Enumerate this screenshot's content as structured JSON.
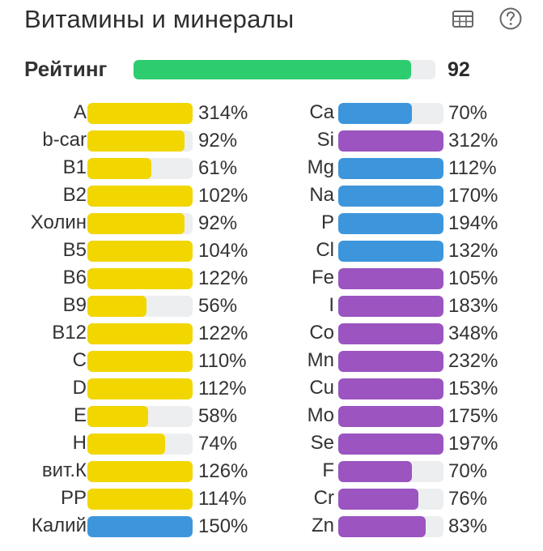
{
  "header": {
    "title": "Витамины и минералы",
    "table_icon": "table-icon",
    "help_icon": "help-icon"
  },
  "rating": {
    "label": "Рейтинг",
    "value": "92",
    "level_percent": 92,
    "color": "#2dcc6f"
  },
  "colors": {
    "vitamin": "#f2d600",
    "mineral_blue": "#3d96dc",
    "mineral_purple": "#9b54c0",
    "track": "#eceeef"
  },
  "vitamins": [
    {
      "label": "A",
      "percent": "314%",
      "fill_percent": 100,
      "color": "#f2d600"
    },
    {
      "label": "b-car",
      "percent": "92%",
      "fill_percent": 92,
      "color": "#f2d600"
    },
    {
      "label": "B1",
      "percent": "61%",
      "fill_percent": 61,
      "color": "#f2d600"
    },
    {
      "label": "B2",
      "percent": "102%",
      "fill_percent": 100,
      "color": "#f2d600"
    },
    {
      "label": "Холин",
      "percent": "92%",
      "fill_percent": 92,
      "color": "#f2d600"
    },
    {
      "label": "B5",
      "percent": "104%",
      "fill_percent": 100,
      "color": "#f2d600"
    },
    {
      "label": "B6",
      "percent": "122%",
      "fill_percent": 100,
      "color": "#f2d600"
    },
    {
      "label": "B9",
      "percent": "56%",
      "fill_percent": 56,
      "color": "#f2d600"
    },
    {
      "label": "B12",
      "percent": "122%",
      "fill_percent": 100,
      "color": "#f2d600"
    },
    {
      "label": "C",
      "percent": "110%",
      "fill_percent": 100,
      "color": "#f2d600"
    },
    {
      "label": "D",
      "percent": "112%",
      "fill_percent": 100,
      "color": "#f2d600"
    },
    {
      "label": "E",
      "percent": "58%",
      "fill_percent": 58,
      "color": "#f2d600"
    },
    {
      "label": "H",
      "percent": "74%",
      "fill_percent": 74,
      "color": "#f2d600"
    },
    {
      "label": "вит.К",
      "percent": "126%",
      "fill_percent": 100,
      "color": "#f2d600"
    },
    {
      "label": "PP",
      "percent": "114%",
      "fill_percent": 100,
      "color": "#f2d600"
    },
    {
      "label": "Калий",
      "percent": "150%",
      "fill_percent": 100,
      "color": "#3d96dc"
    }
  ],
  "minerals": [
    {
      "label": "Ca",
      "percent": "70%",
      "fill_percent": 70,
      "color": "#3d96dc"
    },
    {
      "label": "Si",
      "percent": "312%",
      "fill_percent": 100,
      "color": "#9b54c0"
    },
    {
      "label": "Mg",
      "percent": "112%",
      "fill_percent": 100,
      "color": "#3d96dc"
    },
    {
      "label": "Na",
      "percent": "170%",
      "fill_percent": 100,
      "color": "#3d96dc"
    },
    {
      "label": "P",
      "percent": "194%",
      "fill_percent": 100,
      "color": "#3d96dc"
    },
    {
      "label": "Cl",
      "percent": "132%",
      "fill_percent": 100,
      "color": "#3d96dc"
    },
    {
      "label": "Fe",
      "percent": "105%",
      "fill_percent": 100,
      "color": "#9b54c0"
    },
    {
      "label": "I",
      "percent": "183%",
      "fill_percent": 100,
      "color": "#9b54c0"
    },
    {
      "label": "Co",
      "percent": "348%",
      "fill_percent": 100,
      "color": "#9b54c0"
    },
    {
      "label": "Mn",
      "percent": "232%",
      "fill_percent": 100,
      "color": "#9b54c0"
    },
    {
      "label": "Cu",
      "percent": "153%",
      "fill_percent": 100,
      "color": "#9b54c0"
    },
    {
      "label": "Mo",
      "percent": "175%",
      "fill_percent": 100,
      "color": "#9b54c0"
    },
    {
      "label": "Se",
      "percent": "197%",
      "fill_percent": 100,
      "color": "#9b54c0"
    },
    {
      "label": "F",
      "percent": "70%",
      "fill_percent": 70,
      "color": "#9b54c0"
    },
    {
      "label": "Cr",
      "percent": "76%",
      "fill_percent": 76,
      "color": "#9b54c0"
    },
    {
      "label": "Zn",
      "percent": "83%",
      "fill_percent": 83,
      "color": "#9b54c0"
    }
  ]
}
